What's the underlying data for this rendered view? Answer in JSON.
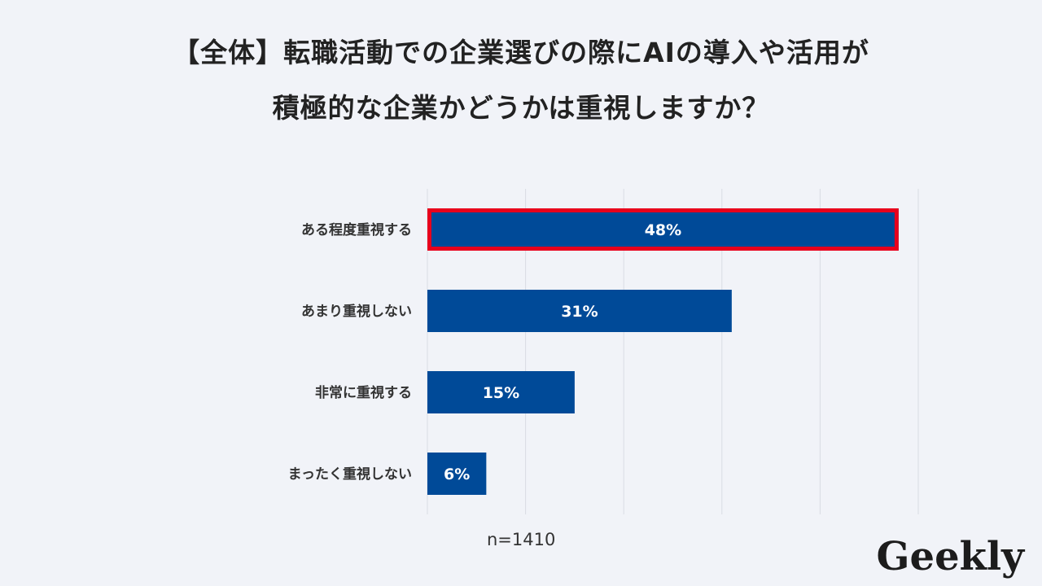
{
  "title": {
    "line1": "【全体】転職活動での企業選びの際にAIの導入や活用が",
    "line2": "積極的な企業かどうかは重視しますか？"
  },
  "chart_data": {
    "type": "bar",
    "orientation": "horizontal",
    "categories": [
      "ある程度重視する",
      "あまり重視しない",
      "非常に重視する",
      "まったく重視しない"
    ],
    "values": [
      48,
      31,
      15,
      6
    ],
    "value_labels": [
      "48%",
      "31%",
      "15%",
      "6%"
    ],
    "xlim": [
      0,
      50
    ],
    "grid": true,
    "highlight_index": 0,
    "bar_color": "#004a98",
    "highlight_color": "#e8001c",
    "grid_color": "#d9dce3"
  },
  "note": "n=1410",
  "logo": "Geekly"
}
